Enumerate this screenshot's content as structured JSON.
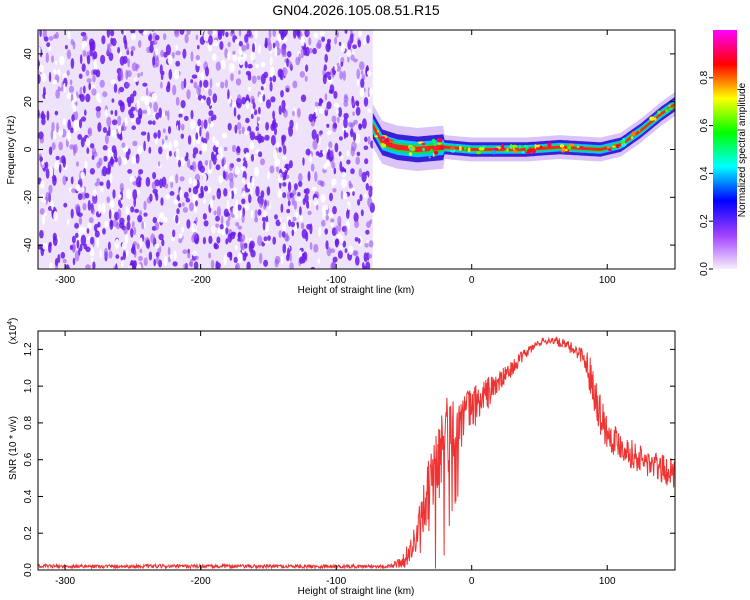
{
  "title": "GN04.2026.105.08.51.R15",
  "chart_data": [
    {
      "type": "heatmap",
      "xlabel": "Height of straight line (km)",
      "ylabel": "Frequency (Hz)",
      "xlim": [
        -320,
        150
      ],
      "ylim": [
        -50,
        50
      ],
      "x_ticks": [
        -300,
        -200,
        -100,
        0,
        100
      ],
      "y_ticks": [
        -40,
        -20,
        0,
        20,
        40
      ],
      "noise_region_x": [
        -320,
        -73
      ],
      "ridge": [
        {
          "x": -73,
          "y": 10
        },
        {
          "x": -66,
          "y": 3
        },
        {
          "x": -55,
          "y": 1
        },
        {
          "x": -40,
          "y": 0
        },
        {
          "x": -20,
          "y": 1
        },
        {
          "x": 0,
          "y": 0
        },
        {
          "x": 40,
          "y": 0
        },
        {
          "x": 65,
          "y": 1
        },
        {
          "x": 95,
          "y": 0
        },
        {
          "x": 110,
          "y": 2
        },
        {
          "x": 125,
          "y": 8
        },
        {
          "x": 140,
          "y": 15
        },
        {
          "x": 150,
          "y": 19
        }
      ],
      "colorbar": {
        "label": "Normalized spectral amplitude",
        "range": [
          0,
          1
        ],
        "ticks": [
          "0.0",
          "0.2",
          "0.4",
          "0.6",
          "0.8"
        ],
        "colors": [
          "#f6eefc",
          "#a040ff",
          "#0000ff",
          "#00ffff",
          "#00ff00",
          "#ffff00",
          "#ff0000",
          "#ff00ff"
        ]
      }
    },
    {
      "type": "line",
      "xlabel": "Height of straight line (km)",
      "ylabel": "SNR (10 * v/v)",
      "y_multiplier": "(x10",
      "y_multiplier_exp": "4",
      "xlim": [
        -320,
        150
      ],
      "ylim": [
        0,
        1.3
      ],
      "x_ticks": [
        -300,
        -200,
        -100,
        0,
        100
      ],
      "y_ticks": [
        "0.0",
        "0.2",
        "0.4",
        "0.6",
        "0.8",
        "1.0",
        "1.2"
      ],
      "series": [
        {
          "color": "#ee3333",
          "x": [
            -320,
            -100,
            -60,
            -50,
            -40,
            -35,
            -30,
            -25,
            -20,
            -15,
            -10,
            0,
            10,
            20,
            30,
            40,
            50,
            60,
            70,
            80,
            85,
            90,
            95,
            100,
            110,
            120,
            130,
            140,
            150
          ],
          "y": [
            0.02,
            0.02,
            0.02,
            0.05,
            0.18,
            0.3,
            0.45,
            0.58,
            0.7,
            0.75,
            0.8,
            0.88,
            0.95,
            1.02,
            1.1,
            1.18,
            1.24,
            1.25,
            1.22,
            1.18,
            1.12,
            1.0,
            0.85,
            0.75,
            0.68,
            0.62,
            0.58,
            0.55,
            0.52
          ],
          "noise_amplitude": [
            0.01,
            0.01,
            0.01,
            0.04,
            0.12,
            0.18,
            0.22,
            0.25,
            0.28,
            0.2,
            0.18,
            0.12,
            0.1,
            0.06,
            0.04,
            0.03,
            0.02,
            0.02,
            0.03,
            0.04,
            0.08,
            0.12,
            0.12,
            0.1,
            0.08,
            0.08,
            0.08,
            0.08,
            0.08
          ]
        }
      ]
    }
  ]
}
